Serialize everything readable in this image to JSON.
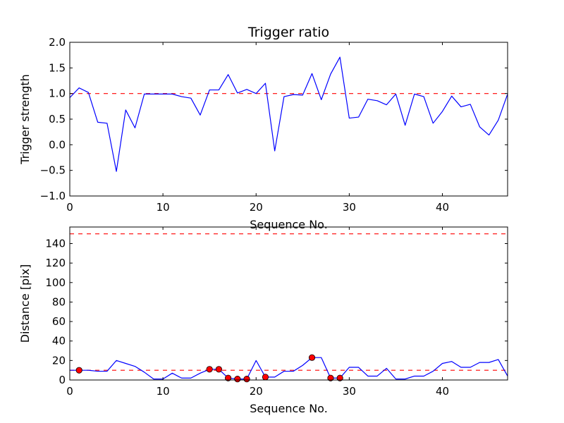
{
  "chart_data": [
    {
      "type": "line",
      "title": "Trigger ratio",
      "xlabel": "Sequence No.",
      "ylabel": "Trigger strength",
      "xlim": [
        0,
        47
      ],
      "ylim": [
        -1.0,
        2.0
      ],
      "xticks": [
        0,
        10,
        20,
        30,
        40
      ],
      "xtick_labels": [
        "0",
        "10",
        "20",
        "30",
        "40"
      ],
      "yticks": [
        -1.0,
        -0.5,
        0.0,
        0.5,
        1.0,
        1.5,
        2.0
      ],
      "ytick_labels": [
        "−1.0",
        "−0.5",
        "0.0",
        "0.5",
        "1.0",
        "1.5",
        "2.0"
      ],
      "series": [
        {
          "name": "trigger strength",
          "color": "#0000ff",
          "x": [
            0,
            1,
            2,
            3,
            4,
            5,
            6,
            7,
            8,
            9,
            10,
            11,
            12,
            13,
            14,
            15,
            16,
            17,
            18,
            19,
            20,
            21,
            22,
            23,
            24,
            25,
            26,
            27,
            28,
            29,
            30,
            31,
            32,
            33,
            34,
            35,
            36,
            37,
            38,
            39,
            40,
            41,
            42,
            43,
            44,
            45,
            46,
            47
          ],
          "y": [
            0.92,
            1.11,
            1.02,
            0.44,
            0.42,
            -0.52,
            0.68,
            0.33,
            0.99,
            0.99,
            0.99,
            0.99,
            0.94,
            0.91,
            0.58,
            1.07,
            1.07,
            1.37,
            1.01,
            1.08,
            1.0,
            1.2,
            -0.12,
            0.94,
            0.98,
            0.97,
            1.39,
            0.88,
            1.38,
            1.71,
            0.52,
            0.54,
            0.89,
            0.86,
            0.78,
            0.99,
            0.38,
            0.99,
            0.94,
            0.42,
            0.65,
            0.95,
            0.74,
            0.79,
            0.35,
            0.19,
            0.48,
            0.99
          ]
        }
      ],
      "reference_lines": [
        {
          "y": 1.0,
          "color": "#ff0000",
          "style": "dashed"
        }
      ]
    },
    {
      "type": "line",
      "title": "",
      "xlabel": "Sequence No.",
      "ylabel": "Distance [pix]",
      "xlim": [
        0,
        47
      ],
      "ylim": [
        0,
        157
      ],
      "xticks": [
        0,
        10,
        20,
        30,
        40
      ],
      "xtick_labels": [
        "0",
        "10",
        "20",
        "30",
        "40"
      ],
      "yticks": [
        0,
        20,
        40,
        60,
        80,
        100,
        120,
        140
      ],
      "ytick_labels": [
        "0",
        "20",
        "40",
        "60",
        "80",
        "100",
        "120",
        "140"
      ],
      "series": [
        {
          "name": "distance",
          "color": "#0000ff",
          "x": [
            0,
            1,
            2,
            3,
            4,
            5,
            6,
            7,
            8,
            9,
            10,
            11,
            12,
            13,
            14,
            15,
            16,
            17,
            18,
            19,
            20,
            21,
            22,
            23,
            24,
            25,
            26,
            27,
            28,
            29,
            30,
            31,
            32,
            33,
            34,
            35,
            36,
            37,
            38,
            39,
            40,
            41,
            42,
            43,
            44,
            45,
            46,
            47
          ],
          "y": [
            10,
            10,
            10,
            9,
            9,
            20,
            17,
            14,
            8,
            1,
            1,
            7,
            2,
            2,
            7,
            11,
            11,
            2,
            1,
            1,
            20,
            3,
            3,
            9,
            9,
            15,
            23,
            23,
            2,
            2,
            13,
            13,
            4,
            4,
            12,
            1,
            1,
            4,
            4,
            9,
            17,
            19,
            13,
            13,
            18,
            18,
            21,
            4
          ]
        }
      ],
      "markers": {
        "color": "#ff0000",
        "x": [
          1,
          15,
          16,
          17,
          18,
          19,
          21,
          26,
          28,
          29
        ],
        "y": [
          10,
          11,
          11,
          2,
          1,
          1,
          3,
          23,
          2,
          2
        ]
      },
      "reference_lines": [
        {
          "y": 10,
          "color": "#ff0000",
          "style": "dashed"
        },
        {
          "y": 150,
          "color": "#ff0000",
          "style": "dashed"
        }
      ]
    }
  ]
}
